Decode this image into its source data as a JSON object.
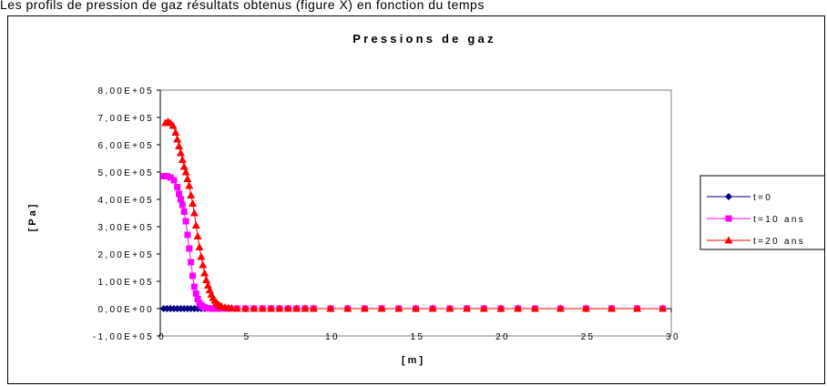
{
  "caption": "Les profils de pression de gaz résultats obtenus (figure X) en fonction du temps",
  "chart_data": {
    "type": "scatter",
    "title": "Pressions de gaz",
    "xlabel": "[m]",
    "ylabel": "[Pa]",
    "xlim": [
      0,
      30
    ],
    "ylim": [
      -100000,
      800000
    ],
    "x_ticks": [
      0,
      5,
      10,
      15,
      20,
      25,
      30
    ],
    "x_tick_labels": [
      "0",
      "5",
      "10",
      "15",
      "20",
      "25",
      "30"
    ],
    "y_ticks": [
      -100000,
      0,
      100000,
      200000,
      300000,
      400000,
      500000,
      600000,
      700000,
      800000
    ],
    "y_tick_labels": [
      "-1,00E+05",
      "0,00E+00",
      "1,00E+05",
      "2,00E+05",
      "3,00E+05",
      "4,00E+05",
      "5,00E+05",
      "6,00E+05",
      "7,00E+05",
      "8,00E+05"
    ],
    "grid": false,
    "legend_position": "right",
    "series": [
      {
        "name": "t=0",
        "color": "#000080",
        "marker": "diamond",
        "x": [
          0.2,
          0.4,
          0.6,
          0.8,
          1.0,
          1.2,
          1.4,
          1.6,
          1.8,
          2.0,
          2.2,
          2.4,
          2.6
        ],
        "y": [
          0,
          0,
          0,
          0,
          0,
          0,
          0,
          0,
          0,
          0,
          0,
          0,
          0
        ]
      },
      {
        "name": "t=10 ans",
        "color": "#ff00ff",
        "marker": "square",
        "x": [
          0.2,
          0.4,
          0.6,
          0.8,
          1.0,
          1.1,
          1.2,
          1.3,
          1.4,
          1.5,
          1.6,
          1.7,
          1.8,
          1.9,
          2.0,
          2.1,
          2.2,
          2.3,
          2.4,
          2.5,
          2.6,
          2.7,
          2.8,
          3.0,
          3.2,
          3.4,
          3.6,
          3.8,
          4.0,
          4.5,
          5.0,
          5.5,
          6.0,
          6.5,
          7.0,
          7.5,
          8.0,
          8.5,
          9.0,
          10.0,
          11.0,
          12.0,
          13.0,
          14.0,
          15.0,
          16.0,
          17.0,
          18.0,
          19.0,
          20.0,
          21.0,
          22.0,
          23.5,
          25.0,
          26.5,
          28.0,
          29.5
        ],
        "y": [
          485000,
          485000,
          480000,
          470000,
          445000,
          420000,
          400000,
          380000,
          355000,
          320000,
          270000,
          220000,
          170000,
          120000,
          80000,
          55000,
          35000,
          20000,
          12000,
          7000,
          4000,
          2000,
          1000,
          0,
          0,
          0,
          0,
          0,
          0,
          0,
          0,
          0,
          0,
          0,
          0,
          0,
          0,
          0,
          0,
          0,
          0,
          0,
          0,
          0,
          0,
          0,
          0,
          0,
          0,
          0,
          0,
          0,
          0,
          0,
          0,
          0,
          0
        ]
      },
      {
        "name": "t=20 ans",
        "color": "#ff0000",
        "marker": "triangle",
        "x": [
          0.3,
          0.45,
          0.6,
          0.75,
          0.9,
          1.0,
          1.1,
          1.2,
          1.3,
          1.4,
          1.5,
          1.6,
          1.7,
          1.8,
          1.9,
          2.0,
          2.1,
          2.2,
          2.3,
          2.4,
          2.5,
          2.6,
          2.7,
          2.8,
          2.9,
          3.0,
          3.1,
          3.2,
          3.3,
          3.4,
          3.5,
          3.6,
          3.8,
          4.0,
          4.2,
          4.5,
          5.0,
          5.5,
          6.0,
          6.5,
          7.0,
          7.5,
          8.0,
          8.5,
          9.0,
          10.0,
          11.0,
          12.0,
          13.0,
          14.0,
          15.0,
          16.0,
          17.0,
          18.0,
          19.0,
          20.0,
          21.0,
          22.0,
          23.5,
          25.0,
          26.5,
          28.0,
          29.5
        ],
        "y": [
          680000,
          685000,
          680000,
          670000,
          645000,
          620000,
          595000,
          570000,
          545000,
          520000,
          500000,
          475000,
          450000,
          415000,
          385000,
          350000,
          305000,
          265000,
          225000,
          190000,
          160000,
          130000,
          105000,
          85000,
          68000,
          52000,
          40000,
          30000,
          22000,
          16000,
          11000,
          8000,
          5000,
          3000,
          1500,
          500,
          0,
          0,
          0,
          0,
          0,
          0,
          0,
          0,
          0,
          0,
          0,
          0,
          0,
          0,
          0,
          0,
          0,
          0,
          0,
          0,
          0,
          0,
          0,
          0,
          0,
          0,
          0
        ]
      }
    ]
  }
}
